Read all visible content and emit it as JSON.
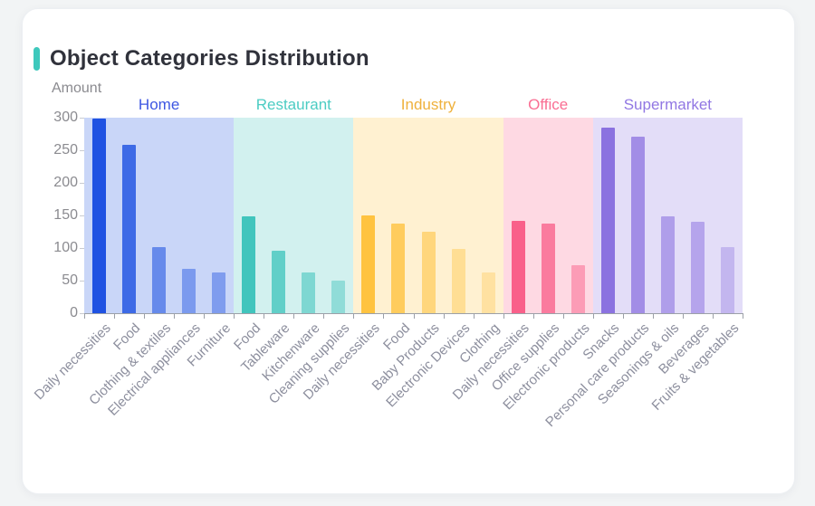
{
  "page": {
    "background_color": "#F2F4F5",
    "card_background": "#FFFFFF",
    "title_accent_color": "#3EC8BC"
  },
  "axis": {
    "line_color": "#9CA0A8",
    "tick_color": "#9CA0A8",
    "y_label_color": "#8B8B90",
    "x_label_color": "#8D8F9E"
  },
  "chart_data": {
    "type": "bar",
    "title": "Object Categories Distribution",
    "xlabel": "",
    "ylabel": "Amount",
    "ylim": [
      0,
      300
    ],
    "yticks": [
      0,
      50,
      100,
      150,
      200,
      250,
      300
    ],
    "grid": false,
    "legend_position": "none",
    "grouped_background_bands": true,
    "groups": [
      {
        "name": "Home",
        "label_color": "#3D56E2",
        "base_color": "#1F52E2",
        "band_alpha": 0.24,
        "bar_alphas": [
          1,
          0.82,
          0.58,
          0.46,
          0.44
        ],
        "categories": [
          "Daily necessities",
          "Food",
          "Clothing & textiles",
          "Electrical appliances",
          "Furniture"
        ],
        "values": [
          298,
          258,
          102,
          68,
          63
        ]
      },
      {
        "name": "Restaurant",
        "label_color": "#4CCCC3",
        "base_color": "#41C5BD",
        "band_alpha": 0.24,
        "bar_alphas": [
          1,
          0.78,
          0.58,
          0.46
        ],
        "categories": [
          "Food",
          "Tableware",
          "Kitchenware",
          "Cleaning supplies"
        ],
        "values": [
          148,
          96,
          62,
          50
        ]
      },
      {
        "name": "Industry",
        "label_color": "#EFB13C",
        "base_color": "#FFC340",
        "band_alpha": 0.24,
        "bar_alphas": [
          1,
          0.8,
          0.59,
          0.42,
          0.33
        ],
        "categories": [
          "Daily necessities",
          "Food",
          "Baby Products",
          "Electronic Devices",
          "Clothing"
        ],
        "values": [
          150,
          138,
          125,
          98,
          62
        ]
      },
      {
        "name": "Office",
        "label_color": "#FA6E93",
        "base_color": "#F9608A",
        "band_alpha": 0.24,
        "bar_alphas": [
          1,
          0.78,
          0.5
        ],
        "categories": [
          "Daily necessities",
          "Office supplies",
          "Electronic products"
        ],
        "values": [
          142,
          138,
          74
        ]
      },
      {
        "name": "Supermarket",
        "label_color": "#9177E3",
        "base_color": "#8B72E0",
        "band_alpha": 0.24,
        "bar_alphas": [
          1,
          0.74,
          0.59,
          0.53,
          0.36
        ],
        "categories": [
          "Snacks",
          "Personal care products",
          "Seasonings & oils",
          "Beverages",
          "Fruits & vegetables"
        ],
        "values": [
          285,
          271,
          148,
          140,
          101
        ]
      }
    ]
  }
}
